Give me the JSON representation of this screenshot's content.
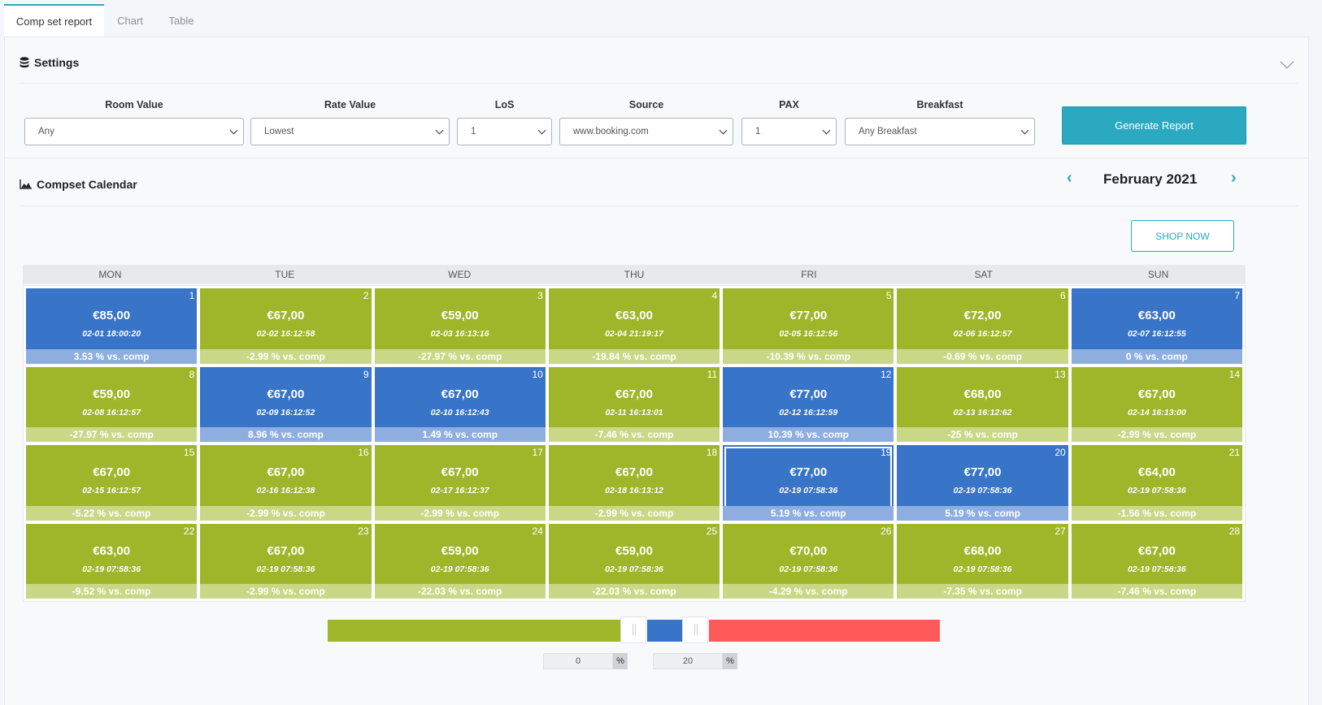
{
  "tabs": [
    {
      "label": "Comp set report"
    },
    {
      "label": "Chart"
    },
    {
      "label": "Table"
    }
  ],
  "settings": {
    "title": "Settings",
    "fields": [
      {
        "label": "Room Value",
        "value": "Any"
      },
      {
        "label": "Rate Value",
        "value": "Lowest"
      },
      {
        "label": "LoS",
        "value": "1"
      },
      {
        "label": "Source",
        "value": "www.booking.com"
      },
      {
        "label": "PAX",
        "value": "1"
      },
      {
        "label": "Breakfast",
        "value": "Any Breakfast"
      }
    ],
    "generate_label": "Generate Report"
  },
  "calendar": {
    "title": "Compset Calendar",
    "month": "February 2021",
    "prev_icon": "‹",
    "next_icon": "›",
    "shop_label": "SHOP NOW",
    "weekdays": [
      "MON",
      "TUE",
      "WED",
      "THU",
      "FRI",
      "SAT",
      "SUN"
    ],
    "days": [
      {
        "day": "1",
        "price": "€85,00",
        "ts": "02-01 18:00:20",
        "cmp": "3.53 % vs. comp",
        "color": "blue"
      },
      {
        "day": "2",
        "price": "€67,00",
        "ts": "02-02 16:12:58",
        "cmp": "-2.99 % vs. comp",
        "color": "green"
      },
      {
        "day": "3",
        "price": "€59,00",
        "ts": "02-03 16:13:16",
        "cmp": "-27.97 % vs. comp",
        "color": "green"
      },
      {
        "day": "4",
        "price": "€63,00",
        "ts": "02-04 21:19:17",
        "cmp": "-19.84 % vs. comp",
        "color": "green"
      },
      {
        "day": "5",
        "price": "€77,00",
        "ts": "02-05 16:12:56",
        "cmp": "-10.39 % vs. comp",
        "color": "green"
      },
      {
        "day": "6",
        "price": "€72,00",
        "ts": "02-06 16:12:57",
        "cmp": "-0.69 % vs. comp",
        "color": "green"
      },
      {
        "day": "7",
        "price": "€63,00",
        "ts": "02-07 16:12:55",
        "cmp": "0 % vs. comp",
        "color": "blue"
      },
      {
        "day": "8",
        "price": "€59,00",
        "ts": "02-08 16:12:57",
        "cmp": "-27.97 % vs. comp",
        "color": "green"
      },
      {
        "day": "9",
        "price": "€67,00",
        "ts": "02-09 16:12:52",
        "cmp": "8.96 % vs. comp",
        "color": "blue"
      },
      {
        "day": "10",
        "price": "€67,00",
        "ts": "02-10 16:12:43",
        "cmp": "1.49 % vs. comp",
        "color": "blue"
      },
      {
        "day": "11",
        "price": "€67,00",
        "ts": "02-11 16:13:01",
        "cmp": "-7.46 % vs. comp",
        "color": "green"
      },
      {
        "day": "12",
        "price": "€77,00",
        "ts": "02-12 16:12:59",
        "cmp": "10.39 % vs. comp",
        "color": "blue"
      },
      {
        "day": "13",
        "price": "€68,00",
        "ts": "02-13 16:12:62",
        "cmp": "-25 % vs. comp",
        "color": "green"
      },
      {
        "day": "14",
        "price": "€67,00",
        "ts": "02-14 16:13:00",
        "cmp": "-2.99 % vs. comp",
        "color": "green"
      },
      {
        "day": "15",
        "price": "€67,00",
        "ts": "02-15 16:12:57",
        "cmp": "-5.22 % vs. comp",
        "color": "green"
      },
      {
        "day": "16",
        "price": "€67,00",
        "ts": "02-16 16:12:38",
        "cmp": "-2.99 % vs. comp",
        "color": "green"
      },
      {
        "day": "17",
        "price": "€67,00",
        "ts": "02-17 16:12:37",
        "cmp": "-2.99 % vs. comp",
        "color": "green"
      },
      {
        "day": "18",
        "price": "€67,00",
        "ts": "02-18 16:13:12",
        "cmp": "-2.99 % vs. comp",
        "color": "green"
      },
      {
        "day": "19",
        "price": "€77,00",
        "ts": "02-19 07:58:36",
        "cmp": "5.19 % vs. comp",
        "color": "blue",
        "selected": true
      },
      {
        "day": "20",
        "price": "€77,00",
        "ts": "02-19 07:58:36",
        "cmp": "5.19 % vs. comp",
        "color": "blue"
      },
      {
        "day": "21",
        "price": "€64,00",
        "ts": "02-19 07:58:36",
        "cmp": "-1.56 % vs. comp",
        "color": "green"
      },
      {
        "day": "22",
        "price": "€63,00",
        "ts": "02-19 07:58:36",
        "cmp": "-9.52 % vs. comp",
        "color": "green"
      },
      {
        "day": "23",
        "price": "€67,00",
        "ts": "02-19 07:58:36",
        "cmp": "-2.99 % vs. comp",
        "color": "green"
      },
      {
        "day": "24",
        "price": "€59,00",
        "ts": "02-19 07:58:36",
        "cmp": "-22.03 % vs. comp",
        "color": "green"
      },
      {
        "day": "25",
        "price": "€59,00",
        "ts": "02-19 07:58:36",
        "cmp": "-22.03 % vs. comp",
        "color": "green"
      },
      {
        "day": "26",
        "price": "€70,00",
        "ts": "02-19 07:58:36",
        "cmp": "-4.29 % vs. comp",
        "color": "green"
      },
      {
        "day": "27",
        "price": "€68,00",
        "ts": "02-19 07:58:36",
        "cmp": "-7.35 % vs. comp",
        "color": "green"
      },
      {
        "day": "28",
        "price": "€67,00",
        "ts": "02-19 07:58:36",
        "cmp": "-7.46 % vs. comp",
        "color": "green"
      }
    ]
  },
  "range": {
    "min": "0",
    "max": "20",
    "unit": "%",
    "colors": {
      "low": "#9fb62a",
      "mid": "#3874c8",
      "high": "#ff5a5a"
    }
  }
}
